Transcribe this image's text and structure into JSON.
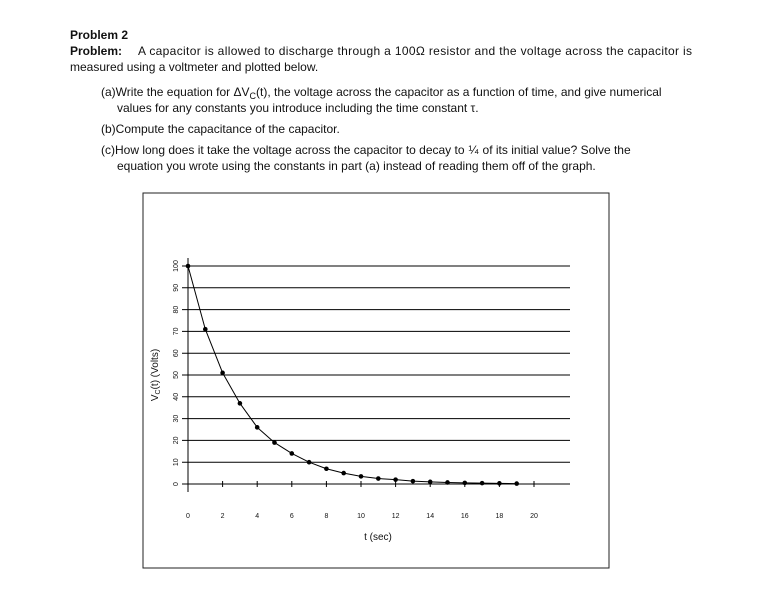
{
  "header": {
    "title": "Problem 2"
  },
  "problem": {
    "label": "Problem:",
    "line_1": "A capacitor is allowed to discharge through a 100Ω resistor and the voltage across the capacitor is",
    "line_2": "measured using a voltmeter and plotted below."
  },
  "parts": [
    {
      "line_1a": "(a)Write the equation for ΔV",
      "line_1sub": "C",
      "line_1b": "(t), the voltage across the capacitor as a function of time, and give numerical",
      "line_2": "values for any constants you introduce including the time constant τ."
    },
    {
      "line_1": "(b)Compute the capacitance of the capacitor."
    },
    {
      "line_1a": "(c)How long does it take the voltage across the capacitor to decay to",
      "fraction": "¼",
      "line_1b": "of its initial value?  Solve the",
      "line_2": "equation you wrote using the constants in part (a) instead of reading them off of the graph."
    }
  ],
  "chart_data": {
    "type": "line",
    "x_label": "t (sec)",
    "y_label_main": "V",
    "y_label_sub": "C",
    "y_label_rest": "(t) (Volts)",
    "x": [
      0,
      1,
      2,
      3,
      4,
      5,
      6,
      7,
      8,
      9,
      10,
      11,
      12,
      13,
      14,
      15,
      16,
      17,
      18,
      19
    ],
    "series": [
      {
        "color": "#000000",
        "values": [
          100,
          71,
          51,
          37,
          26,
          19,
          14,
          10,
          7,
          5,
          3.5,
          2.5,
          2,
          1.3,
          1,
          0.7,
          0.5,
          0.4,
          0.3,
          0.2
        ]
      }
    ],
    "xlim": [
      0,
      22
    ],
    "ylim": [
      0,
      100
    ],
    "xticks": [
      0,
      2,
      4,
      6,
      8,
      10,
      12,
      14,
      16,
      18,
      20
    ],
    "yticks": [
      0,
      10,
      20,
      30,
      40,
      50,
      60,
      70,
      80,
      90,
      100
    ],
    "grid": true
  }
}
